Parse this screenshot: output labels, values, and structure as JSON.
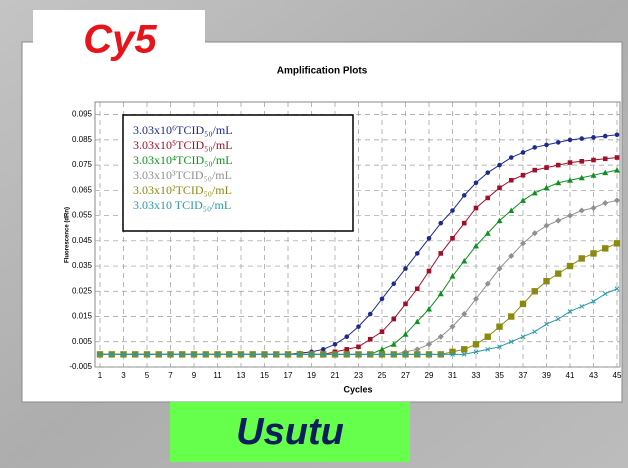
{
  "header": "Cy5",
  "footer": "Usutu",
  "chart_data": {
    "type": "line",
    "title": "Amplification Plots",
    "x_label": "Cycles",
    "y_label": "Fluorescence (dRn)",
    "x": [
      1,
      2,
      3,
      4,
      5,
      6,
      7,
      8,
      9,
      10,
      11,
      12,
      13,
      14,
      15,
      16,
      17,
      18,
      19,
      20,
      21,
      22,
      23,
      24,
      25,
      26,
      27,
      28,
      29,
      30,
      31,
      32,
      33,
      34,
      35,
      36,
      37,
      38,
      39,
      40,
      41,
      42,
      43,
      44,
      45
    ],
    "xlim": [
      1,
      45
    ],
    "xticks": [
      1,
      3,
      5,
      7,
      9,
      11,
      13,
      15,
      17,
      19,
      21,
      23,
      25,
      27,
      29,
      31,
      33,
      35,
      37,
      39,
      41,
      43,
      45
    ],
    "ylim": [
      -0.005,
      0.1
    ],
    "yticks": [
      -0.005,
      0.005,
      0.015,
      0.025,
      0.035,
      0.045,
      0.055,
      0.065,
      0.075,
      0.085,
      0.095
    ],
    "grid": true,
    "series": [
      {
        "name": "3.03x10⁶TCID₅₀/mL",
        "color": "#1f2a8c",
        "marker": "circle",
        "values": [
          0,
          0,
          0,
          0,
          0,
          0,
          0,
          0,
          0,
          0,
          0,
          0,
          0,
          0,
          0,
          0,
          0,
          0.0005,
          0.001,
          0.002,
          0.004,
          0.007,
          0.011,
          0.016,
          0.022,
          0.028,
          0.034,
          0.04,
          0.046,
          0.052,
          0.057,
          0.063,
          0.068,
          0.072,
          0.075,
          0.078,
          0.08,
          0.082,
          0.083,
          0.084,
          0.085,
          0.0855,
          0.086,
          0.0865,
          0.087
        ]
      },
      {
        "name": "3.03x10⁵TCID₅₀/mL",
        "color": "#a0102a",
        "marker": "square",
        "values": [
          0,
          0,
          0,
          0,
          0,
          0,
          0,
          0,
          0,
          0,
          0,
          0,
          0,
          0,
          0,
          0,
          0,
          0,
          0,
          0,
          0.001,
          0.002,
          0.003,
          0.006,
          0.009,
          0.014,
          0.02,
          0.026,
          0.033,
          0.04,
          0.046,
          0.052,
          0.058,
          0.062,
          0.066,
          0.069,
          0.071,
          0.073,
          0.074,
          0.075,
          0.076,
          0.0765,
          0.077,
          0.0775,
          0.078
        ]
      },
      {
        "name": "3.03x10⁴TCID₅₀/mL",
        "color": "#109020",
        "marker": "triangle",
        "values": [
          0,
          0,
          0,
          0,
          0,
          0,
          0,
          0,
          0,
          0,
          0,
          0,
          0,
          0,
          0,
          0,
          0,
          0,
          0,
          0,
          0,
          0,
          0,
          0,
          0.002,
          0.004,
          0.008,
          0.013,
          0.018,
          0.024,
          0.031,
          0.037,
          0.043,
          0.048,
          0.053,
          0.057,
          0.061,
          0.064,
          0.066,
          0.068,
          0.069,
          0.07,
          0.071,
          0.072,
          0.073
        ]
      },
      {
        "name": "3.03x10³TCID₅₀/mL",
        "color": "#909090",
        "marker": "diamond",
        "values": [
          0,
          0,
          0,
          0,
          0,
          0,
          0,
          0,
          0,
          0,
          0,
          0,
          0,
          0,
          0,
          0,
          0,
          0,
          0,
          0,
          0,
          0,
          0,
          0,
          0,
          0,
          0.001,
          0.002,
          0.004,
          0.007,
          0.011,
          0.016,
          0.022,
          0.028,
          0.034,
          0.039,
          0.044,
          0.048,
          0.051,
          0.053,
          0.055,
          0.057,
          0.058,
          0.06,
          0.061
        ]
      },
      {
        "name": "3.03x10²TCID₅₀/mL",
        "color": "#8a8a10",
        "marker": "bigsquare",
        "values": [
          0,
          0,
          0,
          0,
          0,
          0,
          0,
          0,
          0,
          0,
          0,
          0,
          0,
          0,
          0,
          0,
          0,
          0,
          0,
          0,
          0,
          0,
          0,
          0,
          0,
          0,
          0,
          0,
          0,
          0,
          0.001,
          0.002,
          0.004,
          0.007,
          0.011,
          0.015,
          0.02,
          0.025,
          0.029,
          0.032,
          0.035,
          0.038,
          0.04,
          0.042,
          0.044
        ]
      },
      {
        "name": "3.03x10 TCID₅₀/mL",
        "color": "#2a9aa8",
        "marker": "cross",
        "values": [
          0,
          0,
          0,
          0,
          0,
          0,
          0,
          0,
          0,
          0,
          0,
          0,
          0,
          0,
          0,
          0,
          0,
          0,
          0,
          0,
          0,
          0,
          0,
          0,
          0,
          0,
          0,
          0,
          0,
          0,
          0,
          0,
          0.001,
          0.002,
          0.003,
          0.005,
          0.007,
          0.009,
          0.012,
          0.014,
          0.017,
          0.019,
          0.021,
          0.024,
          0.026
        ]
      }
    ]
  }
}
